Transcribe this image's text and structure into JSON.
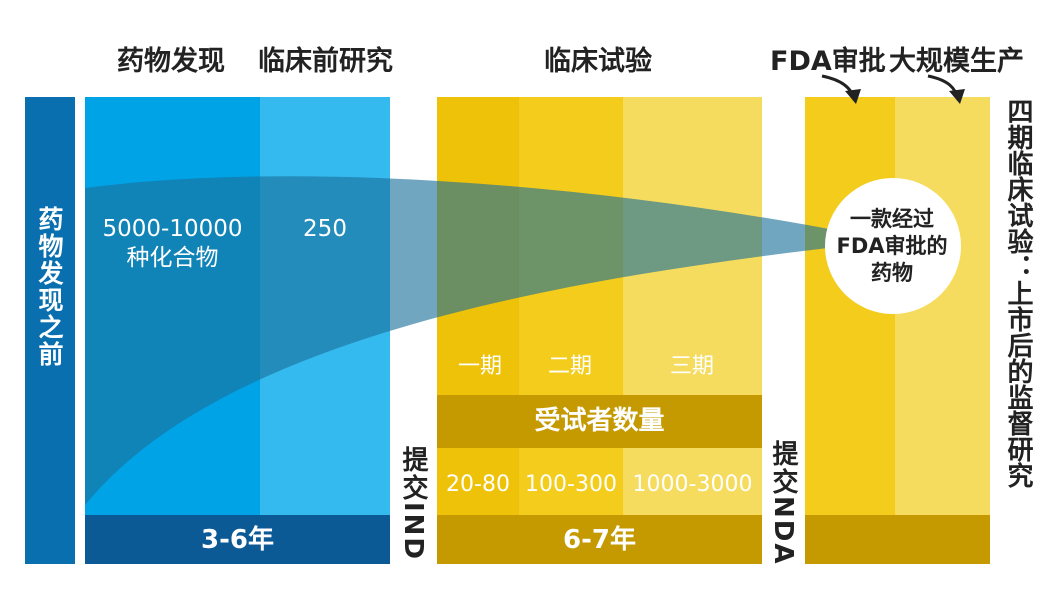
{
  "headers": {
    "discovery": "药物发现",
    "preclinical": "临床前研究",
    "clinical": "临床试验",
    "fda": "FDA审批",
    "manufacturing": "大规模生产"
  },
  "left_bar": "药物发现之前",
  "compounds": {
    "count": "5000-10000",
    "unit": "种化合物"
  },
  "preclinical_count": "250",
  "submit_ind": "提交IND",
  "submit_nda": "提交NDA",
  "phases": [
    "一期",
    "二期",
    "三期"
  ],
  "participants_label": "受试者数量",
  "participants": [
    "20-80",
    "100-300",
    "1000-3000"
  ],
  "durations": {
    "discovery": "3-6年",
    "clinical": "6-7年"
  },
  "approved": [
    "一款经过",
    "FDA审批的",
    "药物"
  ],
  "phase4": "四期临床试验：上市后的监督研究",
  "colors": {
    "dark_blue": "#0a6fae",
    "blue": "#00a3e6",
    "light_blue": "#35baf0",
    "navy": "#0b5a96",
    "yellow": "#f3cc1c",
    "pale_yellow": "#f6dc5e",
    "mustard": "#c49a00",
    "funnel": "#1a6f9a"
  }
}
